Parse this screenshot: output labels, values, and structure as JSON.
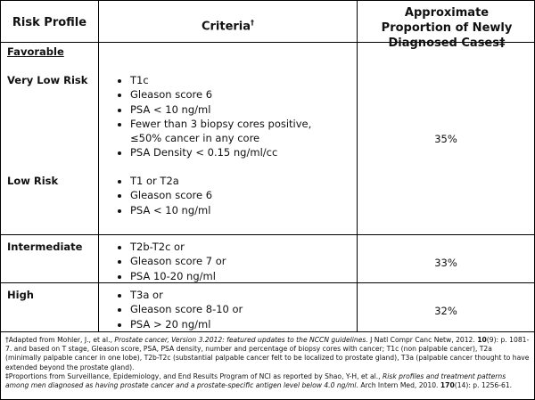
{
  "header": {
    "risk_profile": "Risk Profile",
    "criteria": "Criteria",
    "criteria_mark": "†",
    "proportion": "Approximate Proportion of Newly Diagnosed Cases‡"
  },
  "rows": [
    {
      "group": "Favorable",
      "subgroups": [
        {
          "label": "Very Low Risk",
          "criteria": [
            "T1c",
            "Gleason score 6",
            "PSA < 10 ng/ml",
            "Fewer than 3 biopsy cores positive, ≤50% cancer in any core",
            "PSA Density < 0.15 ng/ml/cc"
          ]
        },
        {
          "label": "Low Risk",
          "criteria": [
            "T1 or T2a",
            "Gleason score 6",
            "PSA < 10 ng/ml"
          ]
        }
      ],
      "proportion": "35%"
    },
    {
      "label": "Intermediate",
      "criteria": [
        "T2b-T2c or",
        "Gleason score 7 or",
        "PSA 10-20 ng/ml"
      ],
      "proportion": "33%"
    },
    {
      "label": "High",
      "criteria": [
        "T3a or",
        "Gleason score 8-10 or",
        "PSA > 20 ng/ml"
      ],
      "proportion": "32%"
    }
  ],
  "footnotes": [
    [
      {
        "text": "†Adapted  from Mohler, J., et al., ",
        "style": "normal"
      },
      {
        "text": "Prostate cancer, Version 3.2012: featured updates to the NCCN guidelines.",
        "style": "italic"
      },
      {
        "text": " J Natl Compr Canc Netw, 2012. ",
        "style": "normal"
      },
      {
        "text": "10",
        "style": "bold"
      },
      {
        "text": "(9): p. 1081-7.  and based on T stage, Gleason score, PSA, PSA density, number and percentage of biopsy cores with cancer; T1c (non palpable cancer), T2a (minimally palpable cancer in one lobe), T2b-T2c (substantial palpable cancer felt to be localized to prostate gland), T3a (palpable cancer thought to have extended beyond the prostate gland).",
        "style": "normal"
      }
    ],
    [
      {
        "text": "‡Proportions from Surveillance, Epidemiology, and End Results Program of NCI as reported by Shao, Y-H, et al., ",
        "style": "normal"
      },
      {
        "text": "Risk profiles and treatment patterns among men diagnosed as having prostate cancer and a prostate-specific antigen level below 4.0 ng/ml",
        "style": "italic"
      },
      {
        "text": ". Arch Intern Med, 2010. ",
        "style": "normal"
      },
      {
        "text": "170",
        "style": "bold"
      },
      {
        "text": "(14): p. 1256-61.",
        "style": "normal"
      }
    ]
  ]
}
